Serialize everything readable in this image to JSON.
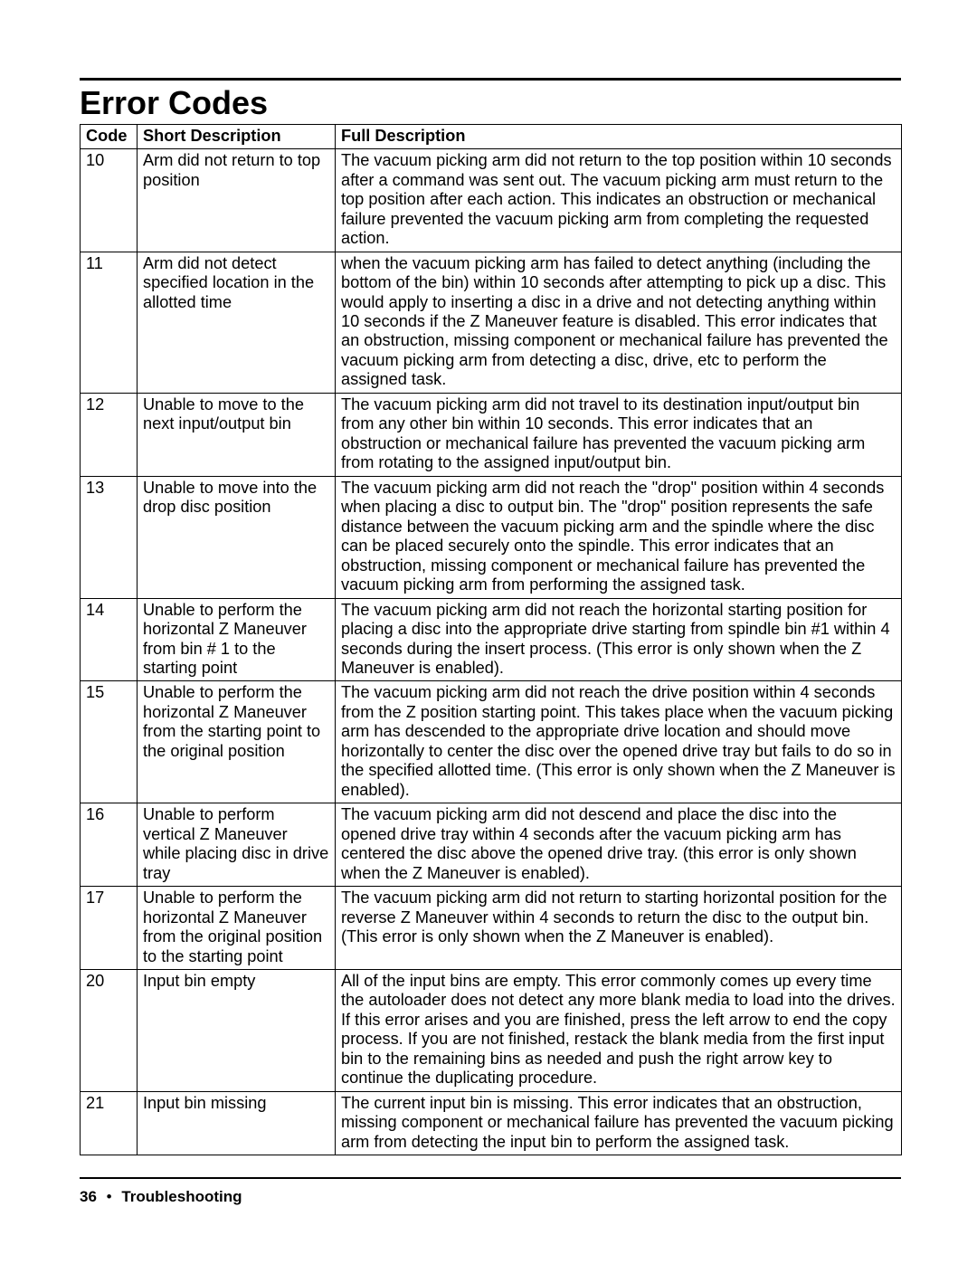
{
  "page": {
    "title": "Error Codes",
    "footer_page": "36",
    "footer_bullet": "•",
    "footer_section": "Troubleshooting",
    "table": {
      "headers": {
        "code": "Code",
        "short": "Short Description",
        "full": "Full Description"
      },
      "rows": [
        {
          "code": "10",
          "short": "Arm did not return to top position",
          "full": "The vacuum picking arm did not return to the top position within 10 seconds after a command was sent out. The vacuum picking arm must return to the top position after each action. This indicates an obstruction or mechanical failure prevented the vacuum picking arm from completing the requested action."
        },
        {
          "code": "11",
          "short": "Arm did not detect specified location in the allotted time",
          "full": "when the vacuum picking arm has failed to detect anything (including the bottom of the bin) within 10 seconds after attempting to pick up a disc. This would apply to inserting a disc in a drive and not detecting anything within 10 seconds if the Z Maneuver feature is disabled.   This error indicates that an obstruction, missing component or mechanical failure has prevented the vacuum picking arm from detecting a disc, drive, etc to perform the assigned task."
        },
        {
          "code": "12",
          "short": "Unable to move to the next input/output bin",
          "full": "The vacuum picking arm did not travel to its destination input/output bin from any other bin within 10 seconds. This error indicates that an obstruction or mechanical failure has prevented the vacuum picking arm from rotating to the assigned input/output bin."
        },
        {
          "code": "13",
          "short": "Unable to move into the drop disc position",
          "full": "The vacuum picking arm did not reach the \"drop\" position within 4 seconds when placing a disc to output bin. The \"drop\" position represents the safe distance between the vacuum picking arm and the spindle where the disc can be placed securely onto the spindle. This error indicates that an obstruction, missing component or mechanical failure has prevented the vacuum picking arm from performing the assigned task."
        },
        {
          "code": "14",
          "short": "Unable to perform the horizontal Z Maneuver from bin # 1 to the starting point",
          "full": "The vacuum picking arm did not reach the horizontal starting position for placing a disc into the appropriate drive starting from spindle bin #1 within 4 seconds during the insert process. (This error is only shown when the Z Maneuver is enabled)."
        },
        {
          "code": "15",
          "short": "Unable to perform the horizontal Z Maneuver from the starting point to the original position",
          "full": "The vacuum picking arm did not reach the drive position within 4 seconds from the Z position starting point. This takes place when the vacuum picking arm has descended to the appropriate drive location and should move horizontally to center the disc over the opened drive tray but fails to do so in the specified allotted time. (This error is only shown when the Z Maneuver is enabled)."
        },
        {
          "code": "16",
          "short": "Unable to perform vertical Z Maneuver while placing disc in drive tray",
          "full": "The vacuum picking arm did not descend and place the disc into the opened drive tray within 4 seconds after the vacuum picking arm has centered the disc above the opened drive tray. (this error is only shown when the Z Maneuver is enabled)."
        },
        {
          "code": "17",
          "short": "Unable to perform the horizontal Z Maneuver from the original position to the starting point",
          "full": "The vacuum picking arm did not return to starting horizontal position for the reverse Z Maneuver within 4 seconds to return the disc to the output bin. (This error is only shown when the Z Maneuver is enabled)."
        },
        {
          "code": "20",
          "short": "Input bin empty",
          "full": "All of the input bins are empty. This error commonly comes up every time the autoloader does not detect any more blank media to load into the drives. If this error arises and you are finished, press the left arrow to end the copy process. If you are not finished, restack the blank media from the first input bin to the remaining bins as needed and push the right arrow key to continue the duplicating procedure."
        },
        {
          "code": "21",
          "short": "Input bin missing",
          "full": "The current input bin is missing. This error indicates that an obstruction, missing component or mechanical failure has prevented the vacuum picking arm from detecting the input bin to perform the assigned task."
        }
      ]
    }
  }
}
